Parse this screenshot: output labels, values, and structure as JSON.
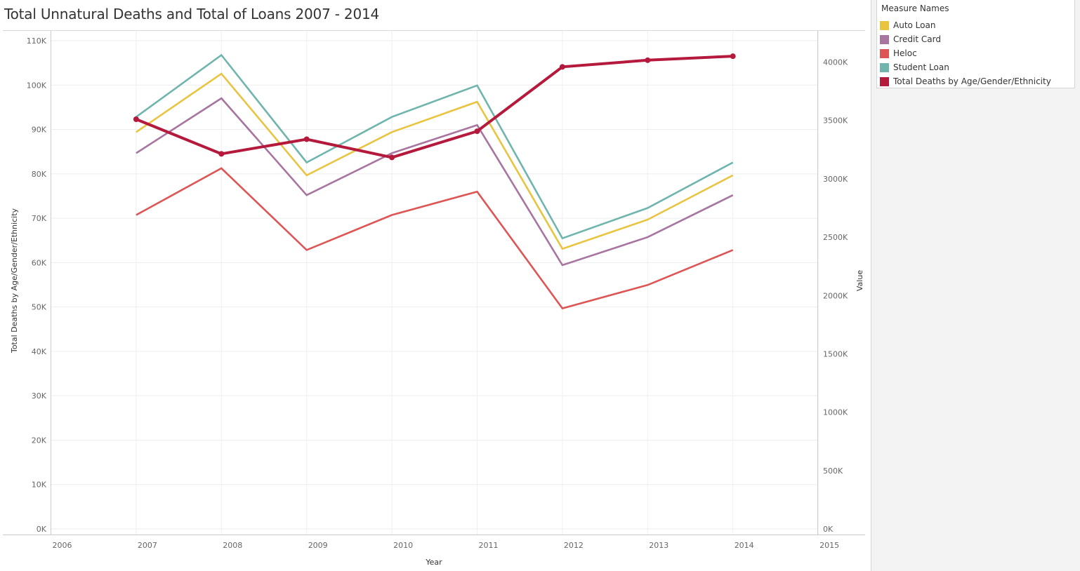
{
  "title": "Total Unnatural Deaths and Total of Loans 2007 - 2014",
  "colors": {
    "auto_loan": "#E8C440",
    "credit_card": "#A874A0",
    "heloc": "#DD5555",
    "student_loan": "#6FB5AE",
    "total_deaths": "#B5193B",
    "grid": "#eeeeee",
    "axis": "#cccccc"
  },
  "legend": {
    "title": "Measure Names",
    "items": [
      {
        "label": "Auto Loan",
        "color": "#E8C440"
      },
      {
        "label": "Credit Card",
        "color": "#A874A0"
      },
      {
        "label": "Heloc",
        "color": "#DD5555"
      },
      {
        "label": "Student Loan",
        "color": "#6FB5AE"
      },
      {
        "label": "Total Deaths by Age/Gender/Ethnicity",
        "color": "#B5193B"
      }
    ]
  },
  "chart_data": {
    "type": "line",
    "title": "Total Unnatural Deaths and Total of Loans 2007 - 2014",
    "xlabel": "Year",
    "ylabel_left": "Total Deaths by Age/Gender/Ethnicity",
    "ylabel_right": "Value",
    "x_ticks": [
      2006,
      2007,
      2008,
      2009,
      2010,
      2011,
      2012,
      2013,
      2014,
      2015
    ],
    "x": [
      2007,
      2008,
      2009,
      2010,
      2011,
      2012,
      2013,
      2014
    ],
    "xlim": [
      2006,
      2015
    ],
    "ylim_left": [
      0,
      110000
    ],
    "ylim_right": [
      0,
      4200000
    ],
    "y_ticks_left": [
      "0K",
      "10K",
      "20K",
      "30K",
      "40K",
      "50K",
      "60K",
      "70K",
      "80K",
      "90K",
      "100K",
      "110K"
    ],
    "y_ticks_left_values": [
      0,
      10000,
      20000,
      30000,
      40000,
      50000,
      60000,
      70000,
      80000,
      90000,
      100000,
      110000
    ],
    "y_ticks_right": [
      "0K",
      "500K",
      "1000K",
      "1500K",
      "2000K",
      "2500K",
      "3000K",
      "3500K",
      "4000K"
    ],
    "y_ticks_right_values": [
      0,
      500000,
      1000000,
      1500000,
      2000000,
      2500000,
      3000000,
      3500000,
      4000000
    ],
    "grid": true,
    "legend_position": "right",
    "series": [
      {
        "name": "Auto Loan",
        "axis": "right",
        "key": "auto_loan",
        "values": [
          3400000,
          3900000,
          3030000,
          3400000,
          3660000,
          2400000,
          2650000,
          3030000
        ]
      },
      {
        "name": "Credit Card",
        "axis": "right",
        "key": "credit_card",
        "values": [
          3220000,
          3690000,
          2860000,
          3220000,
          3460000,
          2260000,
          2500000,
          2860000
        ]
      },
      {
        "name": "Heloc",
        "axis": "right",
        "key": "heloc",
        "values": [
          2690000,
          3090000,
          2390000,
          2690000,
          2890000,
          1890000,
          2090000,
          2390000
        ]
      },
      {
        "name": "Student Loan",
        "axis": "right",
        "key": "student_loan",
        "values": [
          3530000,
          4060000,
          3140000,
          3530000,
          3800000,
          2490000,
          2750000,
          3140000
        ]
      },
      {
        "name": "Total Deaths by Age/Gender/Ethnicity",
        "axis": "left",
        "key": "total_deaths",
        "values": [
          92300,
          84500,
          87800,
          83700,
          89600,
          104100,
          105600,
          106500
        ]
      }
    ]
  }
}
